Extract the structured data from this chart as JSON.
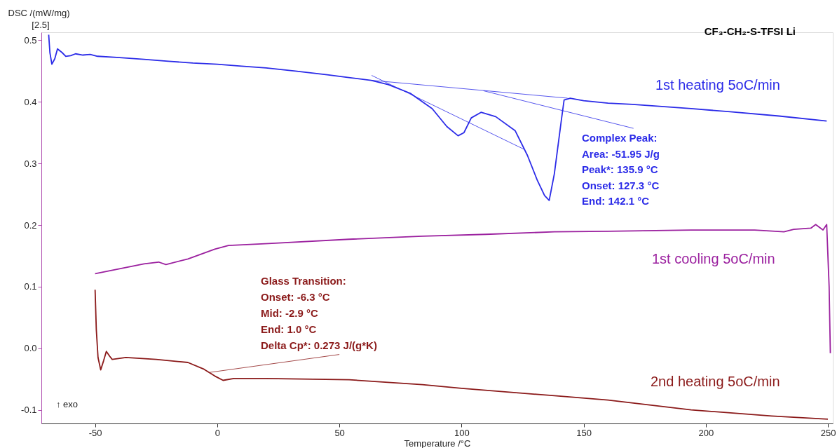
{
  "chart_data": {
    "type": "line",
    "title": "CF₃-CH₂-S-TFSI Li",
    "xlabel": "Temperature /°C",
    "ylabel": "DSC /(mW/mg)",
    "xlim": [
      -72,
      252
    ],
    "ylim": [
      -0.122,
      0.513
    ],
    "xticks": [
      -50,
      0,
      50,
      100,
      150,
      200,
      250
    ],
    "yticks": [
      {
        "value": -0.1,
        "label": "-0.1"
      },
      {
        "value": 0,
        "label": "0.0"
      },
      0.1,
      0.2,
      0.3,
      0.4,
      0.5
    ],
    "grid": false,
    "marker": "none",
    "line_style": "solid",
    "annotations": [
      "[2.5]",
      "↑ exo",
      "Complex Peak:",
      "Area:     -51.95 J/g",
      "Peak*:  135.9 °C",
      "Onset:  127.3 °C",
      "End:     142.1 °C",
      "Glass Transition:",
      "Onset:        -6.3 °C",
      "Mid:            -2.9 °C",
      "End:              1.0 °C",
      "Delta Cp*:   0.273 J/(g*K)"
    ],
    "series": [
      {
        "name": "1st heating 5oC/min",
        "color": "#2b2be8",
        "x": [
          -69,
          -68.5,
          -67.7,
          -66.5,
          -65.4,
          -63.5,
          -62,
          -60,
          -58,
          -55,
          -52,
          -49,
          -40,
          -30,
          -20,
          -10,
          0,
          10,
          20,
          32,
          45,
          55,
          63,
          70,
          79,
          88,
          94,
          98.6,
          101,
          104,
          108,
          114,
          122,
          127,
          131,
          134,
          135.9,
          138,
          141,
          142,
          144.5,
          150,
          160,
          170,
          180,
          194,
          210,
          230,
          249.5
        ],
        "values": [
          0.509,
          0.48,
          0.461,
          0.47,
          0.486,
          0.48,
          0.474,
          0.475,
          0.478,
          0.476,
          0.477,
          0.474,
          0.472,
          0.469,
          0.466,
          0.463,
          0.461,
          0.458,
          0.455,
          0.45,
          0.444,
          0.439,
          0.435,
          0.428,
          0.414,
          0.389,
          0.36,
          0.345,
          0.35,
          0.374,
          0.383,
          0.376,
          0.353,
          0.313,
          0.273,
          0.248,
          0.24,
          0.283,
          0.374,
          0.403,
          0.406,
          0.402,
          0.398,
          0.396,
          0.393,
          0.389,
          0.384,
          0.377,
          0.369
        ]
      },
      {
        "name": "1st cooling 5oC/min",
        "color": "#9b209f",
        "x": [
          -50,
          -40,
          -30,
          -24,
          -21,
          -12,
          -1,
          4.6,
          21,
          54,
          84,
          110,
          138,
          160,
          194,
          220,
          232,
          236,
          243,
          245,
          247,
          248,
          249.5,
          250.5,
          251
        ],
        "values": [
          0.121,
          0.129,
          0.137,
          0.14,
          0.136,
          0.145,
          0.161,
          0.167,
          0.17,
          0.177,
          0.182,
          0.185,
          0.189,
          0.19,
          0.192,
          0.192,
          0.189,
          0.193,
          0.195,
          0.201,
          0.195,
          0.192,
          0.201,
          0.1,
          -0.008
        ]
      },
      {
        "name": "2nd heating 5oC/min",
        "color": "#8b1a1a",
        "x": [
          -50,
          -49.5,
          -48.8,
          -47.7,
          -46.5,
          -45.4,
          -44,
          -43,
          -37.4,
          -25,
          -12,
          -5.4,
          -1,
          2.4,
          6.8,
          20,
          54,
          84,
          100,
          138,
          160,
          194,
          227,
          250
        ],
        "values": [
          0.095,
          0.03,
          -0.015,
          -0.035,
          -0.02,
          -0.005,
          -0.013,
          -0.018,
          -0.015,
          -0.018,
          -0.023,
          -0.034,
          -0.045,
          -0.052,
          -0.049,
          -0.049,
          -0.051,
          -0.059,
          -0.065,
          -0.077,
          -0.084,
          -0.1,
          -0.11,
          -0.115
        ]
      },
      {
        "color": "#2b2be8",
        "x": [
          63.2,
          143.4
        ],
        "values": [
          0.435,
          0.406
        ]
      },
      {
        "color": "#2b2be8",
        "x": [
          63.2,
          125.6
        ],
        "values": [
          0.443,
          0.323
        ]
      },
      {
        "color": "#2b2be8",
        "x": [
          109,
          170.4
        ],
        "values": [
          0.418,
          0.357
        ]
      },
      {
        "color": "#8b1a1a",
        "x": [
          -2.9,
          50
        ],
        "values": [
          -0.039,
          -0.01
        ]
      }
    ]
  }
}
